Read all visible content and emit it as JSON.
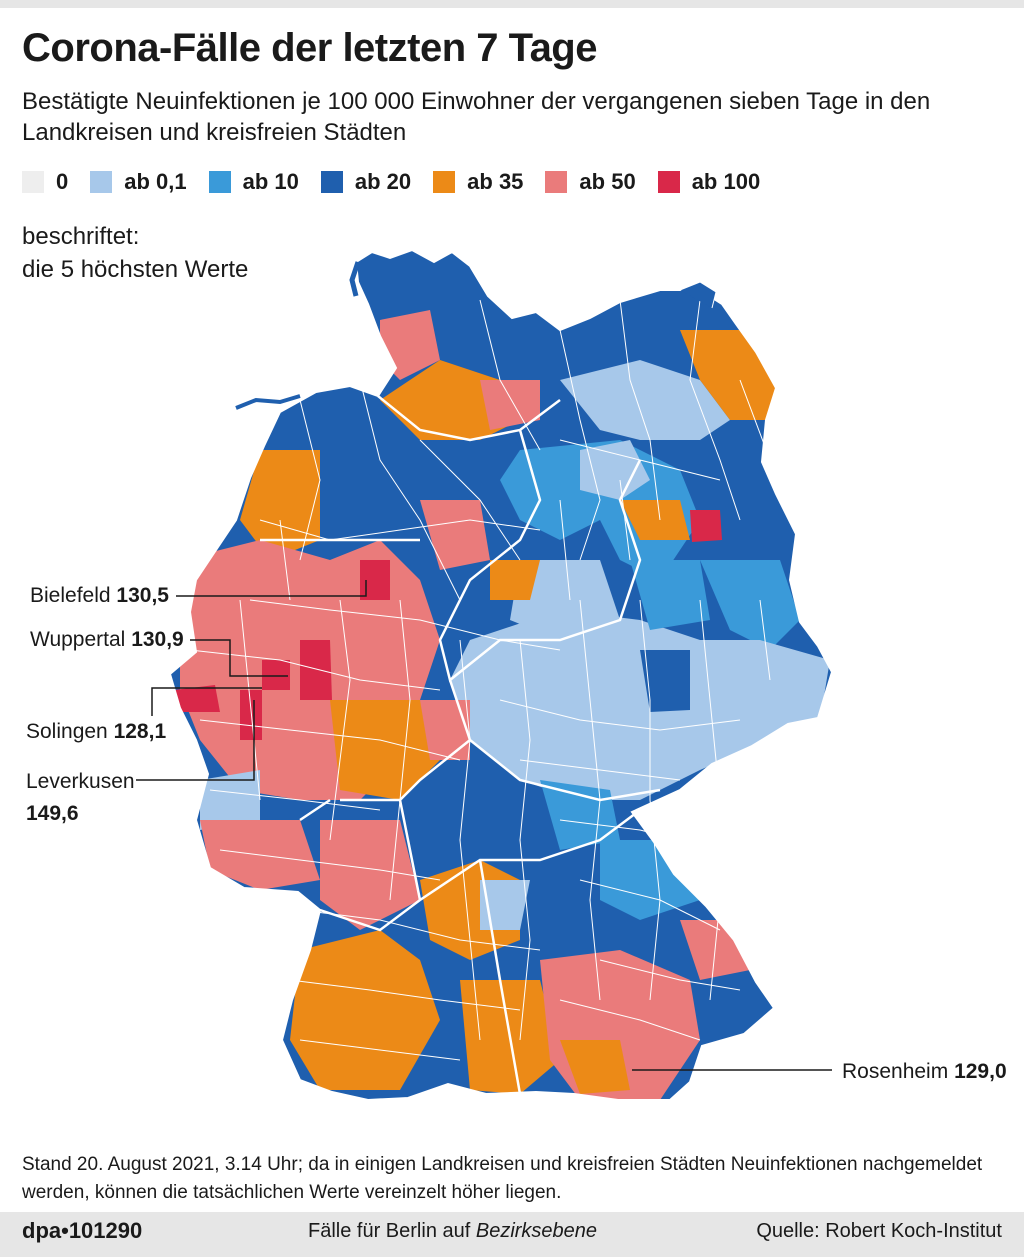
{
  "header": {
    "title": "Corona-Fälle der letzten 7 Tage",
    "subtitle": "Bestätigte Neuinfektionen je 100 000 Einwohner der vergangenen sieben Tage in den Landkreisen und kreisfreien Städten"
  },
  "legend": [
    {
      "label": "0",
      "color": "#eeeeee"
    },
    {
      "label": "ab 0,1",
      "color": "#a7c8ea"
    },
    {
      "label": "ab 10",
      "color": "#3a9ad9"
    },
    {
      "label": "ab 20",
      "color": "#1f5fae"
    },
    {
      "label": "ab 35",
      "color": "#ec8a17"
    },
    {
      "label": "ab 50",
      "color": "#ea7b7b"
    },
    {
      "label": "ab 100",
      "color": "#d92849"
    }
  ],
  "note": {
    "line1": "beschriftet:",
    "line2": "die 5 höchsten Werte"
  },
  "labels": [
    {
      "name": "Bielefeld",
      "value": "130,5"
    },
    {
      "name": "Wuppertal",
      "value": "130,9"
    },
    {
      "name": "Solingen",
      "value": "128,1"
    },
    {
      "name": "Leverkusen",
      "value": "149,6"
    },
    {
      "name": "Rosenheim",
      "value": "129,0"
    }
  ],
  "footnote": "Stand 20. August 2021, 3.14 Uhr; da in einigen Landkreisen und kreisfreien Städten Neuinfektionen nachgemeldet werden, können die tatsächlichen Werte vereinzelt höher liegen.",
  "footer": {
    "agency": "dpa•101290",
    "berlin_text": "Fälle für Berlin auf ",
    "berlin_italic": "Bezirksebene",
    "source": "Quelle: Robert Koch-Institut"
  }
}
